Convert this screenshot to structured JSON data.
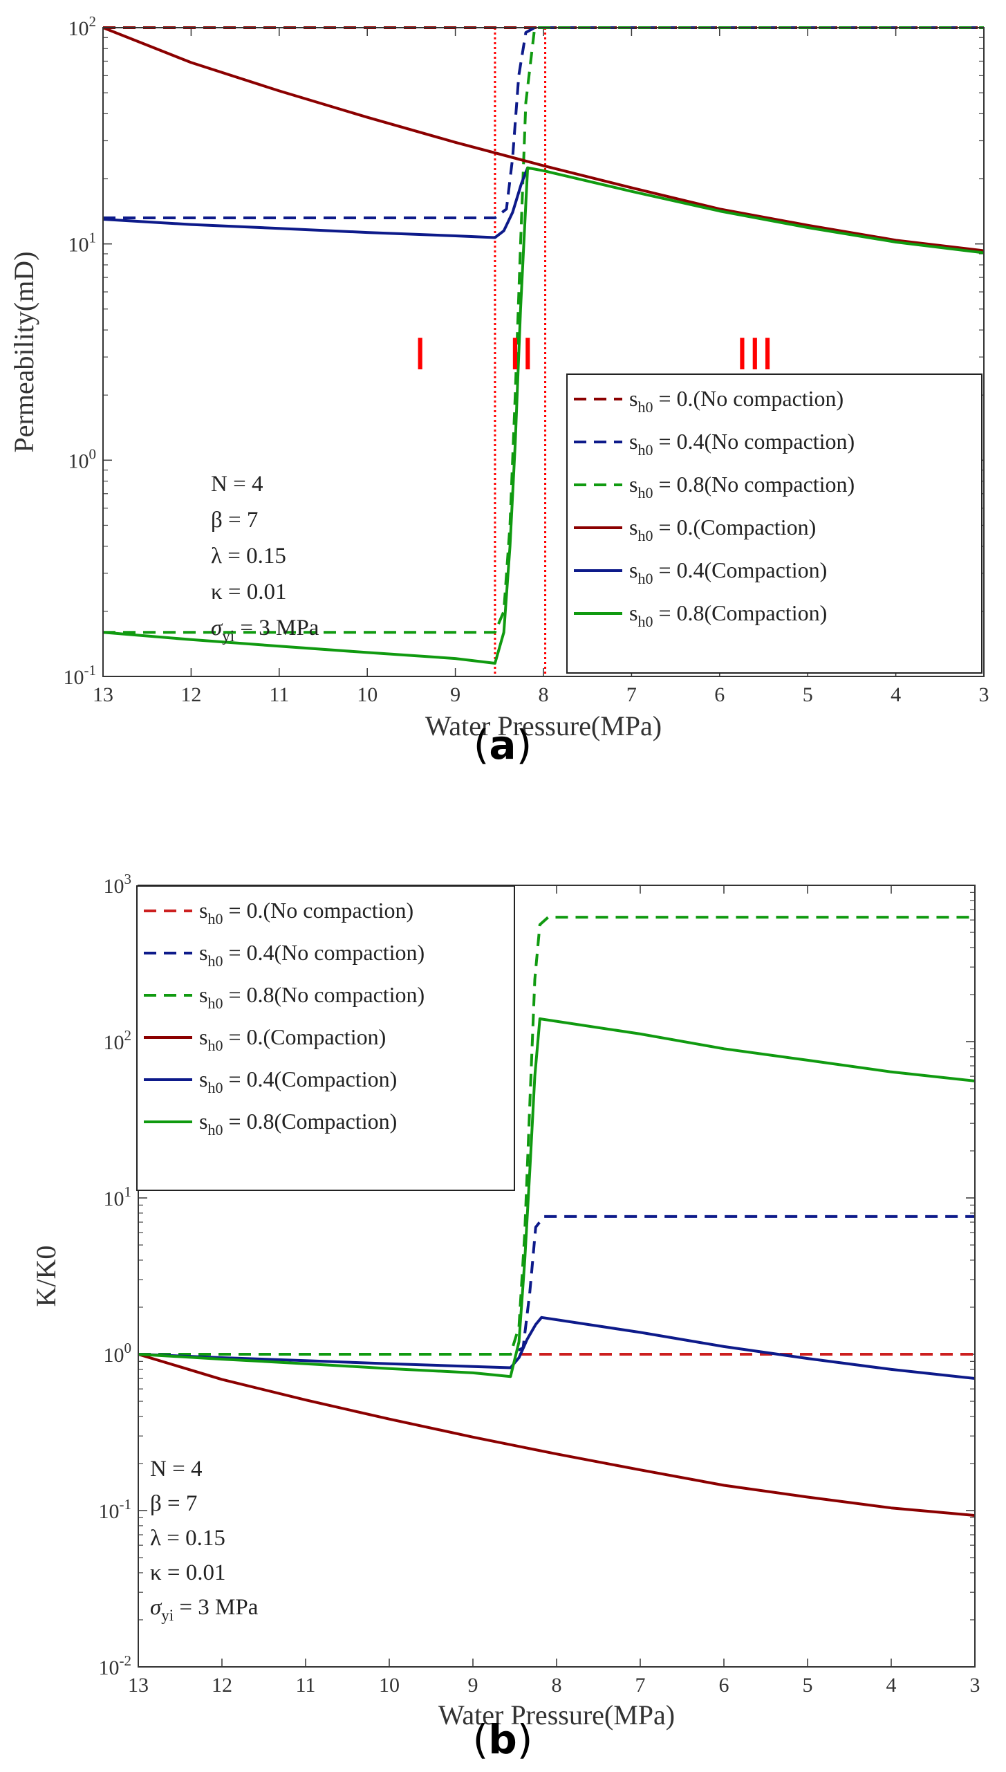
{
  "colors": {
    "dark_red": "#8b0000",
    "red": "#cc1f1f",
    "navy": "#0d1a8a",
    "green": "#109a10",
    "region_marker": "#ff0000"
  },
  "chart_data": [
    {
      "type": "line",
      "panel_label": "a",
      "xlabel": "Water Pressure(MPa)",
      "ylabel": "Permeability(mD)",
      "yscale": "log",
      "xlim": [
        13,
        3
      ],
      "ylim_exp": [
        -1,
        2
      ],
      "xticks": [
        "13",
        "12",
        "11",
        "10",
        "9",
        "8",
        "7",
        "6",
        "5",
        "4",
        "3"
      ],
      "yticks": [
        {
          "base": "10",
          "exp": "-1"
        },
        {
          "base": "10",
          "exp": "0"
        },
        {
          "base": "10",
          "exp": "1"
        },
        {
          "base": "10",
          "exp": "2"
        }
      ],
      "region_lines_x": [
        8.55,
        7.98
      ],
      "regions": [
        {
          "label": "I",
          "x": 9.4
        },
        {
          "label": "II",
          "x": 8.25
        },
        {
          "label": "III",
          "x": 5.6
        }
      ],
      "params": [
        "N = 4",
        "β = 7",
        "λ  = 0.15",
        "κ = 0.01",
        "σyi = 3 MPa"
      ],
      "series": [
        {
          "name": "s_h0 = 0.(No compaction)",
          "label_pre": "s",
          "label_sub": "h0",
          "label_post": " = 0.(No compaction)",
          "style": "dashed",
          "color": "#8b0000",
          "points": [
            [
              13,
              100
            ],
            [
              3,
              100
            ]
          ]
        },
        {
          "name": "s_h0 = 0.4(No compaction)",
          "label_pre": "s",
          "label_sub": "h0",
          "label_post": " = 0.4(No compaction)",
          "style": "dashed",
          "color": "#0d1a8a",
          "points": [
            [
              13,
              13.2
            ],
            [
              8.55,
              13.2
            ],
            [
              8.42,
              14.5
            ],
            [
              8.35,
              25
            ],
            [
              8.28,
              60
            ],
            [
              8.2,
              95
            ],
            [
              8.1,
              100
            ],
            [
              3,
              100
            ]
          ]
        },
        {
          "name": "s_h0 = 0.8(No compaction)",
          "label_pre": "s",
          "label_sub": "h0",
          "label_post": " = 0.8(No compaction)",
          "style": "dashed",
          "color": "#109a10",
          "points": [
            [
              13,
              0.16
            ],
            [
              8.55,
              0.16
            ],
            [
              8.45,
              0.2
            ],
            [
              8.38,
              0.5
            ],
            [
              8.32,
              2
            ],
            [
              8.26,
              10
            ],
            [
              8.2,
              45
            ],
            [
              8.1,
              100
            ],
            [
              3,
              100
            ]
          ]
        },
        {
          "name": "s_h0 = 0.(Compaction)",
          "label_pre": "s",
          "label_sub": "h0",
          "label_post": " = 0.(Compaction)",
          "style": "solid",
          "color": "#8b0000",
          "points": [
            [
              13,
              100
            ],
            [
              12,
              69
            ],
            [
              11,
              51
            ],
            [
              10,
              38.5
            ],
            [
              9,
              29.5
            ],
            [
              8,
              23
            ],
            [
              7,
              18.2
            ],
            [
              6,
              14.5
            ],
            [
              5,
              12.2
            ],
            [
              4,
              10.4
            ],
            [
              3,
              9.3
            ]
          ]
        },
        {
          "name": "s_h0 = 0.4(Compaction)",
          "label_pre": "s",
          "label_sub": "h0",
          "label_post": " = 0.4(Compaction)",
          "style": "solid",
          "color": "#0d1a8a",
          "points": [
            [
              13,
              13
            ],
            [
              12,
              12.3
            ],
            [
              11,
              11.8
            ],
            [
              10,
              11.3
            ],
            [
              9,
              10.9
            ],
            [
              8.55,
              10.7
            ],
            [
              8.45,
              11.5
            ],
            [
              8.35,
              14
            ],
            [
              8.25,
              19
            ],
            [
              8.18,
              22.5
            ]
          ]
        },
        {
          "name": "s_h0 = 0.8(Compaction)",
          "label_pre": "s",
          "label_sub": "h0",
          "label_post": " = 0.8(Compaction)",
          "style": "solid",
          "color": "#109a10",
          "points": [
            [
              13,
              0.16
            ],
            [
              12,
              0.148
            ],
            [
              11,
              0.138
            ],
            [
              10,
              0.129
            ],
            [
              9,
              0.121
            ],
            [
              8.55,
              0.115
            ],
            [
              8.45,
              0.16
            ],
            [
              8.38,
              0.4
            ],
            [
              8.32,
              1.2
            ],
            [
              8.26,
              5
            ],
            [
              8.18,
              22.5
            ],
            [
              8,
              21.8
            ],
            [
              7,
              17.5
            ],
            [
              6,
              14.2
            ],
            [
              5,
              11.9
            ],
            [
              4,
              10.2
            ],
            [
              3,
              9.1
            ]
          ]
        }
      ]
    },
    {
      "type": "line",
      "panel_label": "b",
      "xlabel": "Water Pressure(MPa)",
      "ylabel": "K/K0",
      "yscale": "log",
      "xlim": [
        13,
        3
      ],
      "ylim_exp": [
        -2,
        3
      ],
      "xticks": [
        "13",
        "12",
        "11",
        "10",
        "9",
        "8",
        "7",
        "6",
        "5",
        "4",
        "3"
      ],
      "yticks": [
        {
          "base": "10",
          "exp": "-2"
        },
        {
          "base": "10",
          "exp": "-1"
        },
        {
          "base": "10",
          "exp": "0"
        },
        {
          "base": "10",
          "exp": "1"
        },
        {
          "base": "10",
          "exp": "2"
        },
        {
          "base": "10",
          "exp": "3"
        }
      ],
      "params": [
        "N = 4",
        "β = 7",
        "λ  = 0.15",
        "κ = 0.01",
        "σyi = 3 MPa"
      ],
      "series": [
        {
          "name": "s_h0 = 0.(No compaction)",
          "label_pre": "s",
          "label_sub": "h0",
          "label_post": " = 0.(No compaction)",
          "style": "dashed",
          "color": "#cc1f1f",
          "points": [
            [
              13,
              1
            ],
            [
              3,
              1
            ]
          ]
        },
        {
          "name": "s_h0 = 0.4(No compaction)",
          "label_pre": "s",
          "label_sub": "h0",
          "label_post": " = 0.4(No compaction)",
          "style": "dashed",
          "color": "#0d1a8a",
          "points": [
            [
              13,
              1
            ],
            [
              8.55,
              1
            ],
            [
              8.4,
              1.1
            ],
            [
              8.32,
              2.5
            ],
            [
              8.25,
              6.5
            ],
            [
              8.15,
              7.6
            ],
            [
              3,
              7.6
            ]
          ]
        },
        {
          "name": "s_h0 = 0.8(No compaction)",
          "label_pre": "s",
          "label_sub": "h0",
          "label_post": " = 0.8(No compaction)",
          "style": "dashed",
          "color": "#109a10",
          "points": [
            [
              13,
              1
            ],
            [
              8.55,
              1
            ],
            [
              8.45,
              1.5
            ],
            [
              8.38,
              6
            ],
            [
              8.32,
              40
            ],
            [
              8.26,
              250
            ],
            [
              8.2,
              560
            ],
            [
              8.1,
              625
            ],
            [
              3,
              625
            ]
          ]
        },
        {
          "name": "s_h0 = 0.(Compaction)",
          "label_pre": "s",
          "label_sub": "h0",
          "label_post": " = 0.(Compaction)",
          "style": "solid",
          "color": "#8b0000",
          "points": [
            [
              13,
              1
            ],
            [
              12,
              0.69
            ],
            [
              11,
              0.51
            ],
            [
              10,
              0.385
            ],
            [
              9,
              0.295
            ],
            [
              8,
              0.23
            ],
            [
              7,
              0.182
            ],
            [
              6,
              0.145
            ],
            [
              5,
              0.122
            ],
            [
              4,
              0.104
            ],
            [
              3,
              0.093
            ]
          ]
        },
        {
          "name": "s_h0 = 0.4(Compaction)",
          "label_pre": "s",
          "label_sub": "h0",
          "label_post": " = 0.4(Compaction)",
          "style": "solid",
          "color": "#0d1a8a",
          "points": [
            [
              13,
              1
            ],
            [
              12,
              0.95
            ],
            [
              11,
              0.91
            ],
            [
              10,
              0.87
            ],
            [
              9,
              0.835
            ],
            [
              8.55,
              0.82
            ],
            [
              8.45,
              0.95
            ],
            [
              8.35,
              1.25
            ],
            [
              8.25,
              1.55
            ],
            [
              8.18,
              1.72
            ],
            [
              7,
              1.38
            ],
            [
              6,
              1.12
            ],
            [
              5,
              0.94
            ],
            [
              4,
              0.8
            ],
            [
              3,
              0.7
            ]
          ]
        },
        {
          "name": "s_h0 = 0.8(Compaction)",
          "label_pre": "s",
          "label_sub": "h0",
          "label_post": " = 0.8(Compaction)",
          "style": "solid",
          "color": "#109a10",
          "points": [
            [
              13,
              1
            ],
            [
              12,
              0.93
            ],
            [
              11,
              0.87
            ],
            [
              10,
              0.81
            ],
            [
              9,
              0.76
            ],
            [
              8.55,
              0.72
            ],
            [
              8.45,
              1.2
            ],
            [
              8.38,
              4
            ],
            [
              8.32,
              15
            ],
            [
              8.26,
              60
            ],
            [
              8.2,
              140
            ],
            [
              7,
              112
            ],
            [
              6,
              90
            ],
            [
              5,
              76
            ],
            [
              4,
              64
            ],
            [
              3,
              56
            ]
          ]
        }
      ]
    }
  ]
}
